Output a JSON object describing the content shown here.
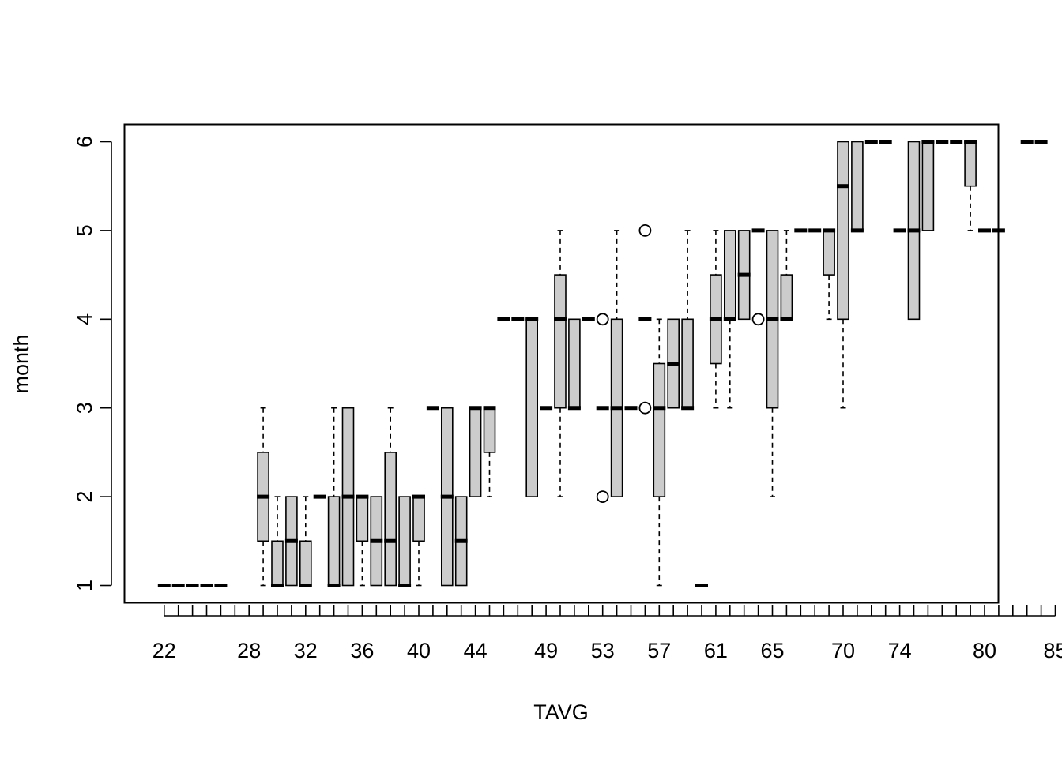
{
  "chart_data": {
    "type": "boxplot",
    "title": "",
    "xlabel": "TAVG",
    "ylabel": "month",
    "ylim": [
      0.9,
      6.2
    ],
    "y_ticks": [
      1,
      2,
      3,
      4,
      5,
      6
    ],
    "grid": false,
    "legend": "none",
    "box_fill": "#cccccc",
    "line_color": "#000000",
    "categories": [
      "22",
      "23",
      "24",
      "25",
      "26",
      "27",
      "28",
      "29",
      "30",
      "31",
      "32",
      "33",
      "34",
      "35",
      "36",
      "37",
      "38",
      "39",
      "40",
      "41",
      "42",
      "43",
      "44",
      "45",
      "46",
      "47",
      "48",
      "49",
      "50",
      "51",
      "52",
      "53",
      "54",
      "55",
      "56",
      "57",
      "58",
      "59",
      "60",
      "61",
      "62",
      "63",
      "64",
      "65",
      "66",
      "67",
      "68",
      "69",
      "70",
      "71",
      "72",
      "73",
      "74",
      "75",
      "76",
      "77",
      "78",
      "79",
      "80",
      "81",
      "82",
      "83",
      "84",
      "85"
    ],
    "labeled_categories": [
      "22",
      "28",
      "32",
      "36",
      "40",
      "44",
      "49",
      "53",
      "57",
      "61",
      "65",
      "70",
      "74",
      "80",
      "85"
    ],
    "boxes": [
      {
        "x": "22",
        "min": 1,
        "q1": 1,
        "median": 1,
        "q3": 1,
        "max": 1
      },
      {
        "x": "23",
        "min": 1,
        "q1": 1,
        "median": 1,
        "q3": 1,
        "max": 1
      },
      {
        "x": "24",
        "min": 1,
        "q1": 1,
        "median": 1,
        "q3": 1,
        "max": 1
      },
      {
        "x": "25",
        "min": 1,
        "q1": 1,
        "median": 1,
        "q3": 1,
        "max": 1
      },
      {
        "x": "26",
        "min": 1,
        "q1": 1,
        "median": 1,
        "q3": 1,
        "max": 1
      },
      {
        "x": "29",
        "min": 1,
        "q1": 1.5,
        "median": 2,
        "q3": 2.5,
        "max": 3
      },
      {
        "x": "30",
        "min": 1,
        "q1": 1,
        "median": 1,
        "q3": 1.5,
        "max": 2
      },
      {
        "x": "31",
        "min": 1,
        "q1": 1,
        "median": 1.5,
        "q3": 2,
        "max": 2
      },
      {
        "x": "32",
        "min": 1,
        "q1": 1,
        "median": 1,
        "q3": 1.5,
        "max": 2
      },
      {
        "x": "33",
        "min": 2,
        "q1": 2,
        "median": 2,
        "q3": 2,
        "max": 2
      },
      {
        "x": "34",
        "min": 1,
        "q1": 1,
        "median": 1,
        "q3": 2,
        "max": 3
      },
      {
        "x": "35",
        "min": 1,
        "q1": 1,
        "median": 2,
        "q3": 3,
        "max": 3
      },
      {
        "x": "36",
        "min": 1,
        "q1": 1.5,
        "median": 2,
        "q3": 2,
        "max": 2
      },
      {
        "x": "37",
        "min": 1,
        "q1": 1,
        "median": 1.5,
        "q3": 2,
        "max": 2
      },
      {
        "x": "38",
        "min": 1,
        "q1": 1,
        "median": 1.5,
        "q3": 2.5,
        "max": 3
      },
      {
        "x": "39",
        "min": 1,
        "q1": 1,
        "median": 1,
        "q3": 2,
        "max": 2
      },
      {
        "x": "40",
        "min": 1,
        "q1": 1.5,
        "median": 2,
        "q3": 2,
        "max": 2
      },
      {
        "x": "41",
        "min": 3,
        "q1": 3,
        "median": 3,
        "q3": 3,
        "max": 3
      },
      {
        "x": "42",
        "min": 1,
        "q1": 1,
        "median": 2,
        "q3": 3,
        "max": 3
      },
      {
        "x": "43",
        "min": 1,
        "q1": 1,
        "median": 1.5,
        "q3": 2,
        "max": 2
      },
      {
        "x": "44",
        "min": 2,
        "q1": 2,
        "median": 3,
        "q3": 3,
        "max": 3
      },
      {
        "x": "45",
        "min": 2,
        "q1": 2.5,
        "median": 3,
        "q3": 3,
        "max": 3
      },
      {
        "x": "46",
        "min": 4,
        "q1": 4,
        "median": 4,
        "q3": 4,
        "max": 4
      },
      {
        "x": "47",
        "min": 4,
        "q1": 4,
        "median": 4,
        "q3": 4,
        "max": 4
      },
      {
        "x": "48",
        "min": 2,
        "q1": 2,
        "median": 4,
        "q3": 4,
        "max": 4
      },
      {
        "x": "49",
        "min": 3,
        "q1": 3,
        "median": 3,
        "q3": 3,
        "max": 3
      },
      {
        "x": "50",
        "min": 2,
        "q1": 3,
        "median": 4,
        "q3": 4.5,
        "max": 5
      },
      {
        "x": "51",
        "min": 3,
        "q1": 3,
        "median": 3,
        "q3": 4,
        "max": 4
      },
      {
        "x": "52",
        "min": 4,
        "q1": 4,
        "median": 4,
        "q3": 4,
        "max": 4
      },
      {
        "x": "53",
        "min": 3,
        "q1": 3,
        "median": 3,
        "q3": 3,
        "max": 3,
        "outliers": [
          2,
          4
        ]
      },
      {
        "x": "54",
        "min": 2,
        "q1": 2,
        "median": 3,
        "q3": 4,
        "max": 5
      },
      {
        "x": "55",
        "min": 3,
        "q1": 3,
        "median": 3,
        "q3": 3,
        "max": 3
      },
      {
        "x": "56",
        "min": 4,
        "q1": 4,
        "median": 4,
        "q3": 4,
        "max": 4,
        "outliers": [
          3,
          5
        ]
      },
      {
        "x": "57",
        "min": 1,
        "q1": 2,
        "median": 3,
        "q3": 3.5,
        "max": 4
      },
      {
        "x": "58",
        "min": 3,
        "q1": 3,
        "median": 3.5,
        "q3": 4,
        "max": 4
      },
      {
        "x": "59",
        "min": 3,
        "q1": 3,
        "median": 3,
        "q3": 4,
        "max": 5
      },
      {
        "x": "60",
        "min": 1,
        "q1": 1,
        "median": 1,
        "q3": 1,
        "max": 1
      },
      {
        "x": "61",
        "min": 3,
        "q1": 3.5,
        "median": 4,
        "q3": 4.5,
        "max": 5
      },
      {
        "x": "62",
        "min": 3,
        "q1": 4,
        "median": 4,
        "q3": 5,
        "max": 5
      },
      {
        "x": "63",
        "min": 4,
        "q1": 4,
        "median": 4.5,
        "q3": 5,
        "max": 5
      },
      {
        "x": "64",
        "min": 5,
        "q1": 5,
        "median": 5,
        "q3": 5,
        "max": 5,
        "outliers": [
          4
        ]
      },
      {
        "x": "65",
        "min": 2,
        "q1": 3,
        "median": 4,
        "q3": 5,
        "max": 5
      },
      {
        "x": "66",
        "min": 4,
        "q1": 4,
        "median": 4,
        "q3": 4.5,
        "max": 5
      },
      {
        "x": "67",
        "min": 5,
        "q1": 5,
        "median": 5,
        "q3": 5,
        "max": 5
      },
      {
        "x": "68",
        "min": 5,
        "q1": 5,
        "median": 5,
        "q3": 5,
        "max": 5
      },
      {
        "x": "69",
        "min": 4,
        "q1": 4.5,
        "median": 5,
        "q3": 5,
        "max": 5
      },
      {
        "x": "70",
        "min": 3,
        "q1": 4,
        "median": 5.5,
        "q3": 6,
        "max": 6
      },
      {
        "x": "71",
        "min": 5,
        "q1": 5,
        "median": 5,
        "q3": 6,
        "max": 6
      },
      {
        "x": "72",
        "min": 6,
        "q1": 6,
        "median": 6,
        "q3": 6,
        "max": 6
      },
      {
        "x": "73",
        "min": 6,
        "q1": 6,
        "median": 6,
        "q3": 6,
        "max": 6
      },
      {
        "x": "74",
        "min": 5,
        "q1": 5,
        "median": 5,
        "q3": 5,
        "max": 5
      },
      {
        "x": "75",
        "min": 4,
        "q1": 4,
        "median": 5,
        "q3": 6,
        "max": 6
      },
      {
        "x": "76",
        "min": 5,
        "q1": 5,
        "median": 6,
        "q3": 6,
        "max": 6
      },
      {
        "x": "77",
        "min": 6,
        "q1": 6,
        "median": 6,
        "q3": 6,
        "max": 6
      },
      {
        "x": "78",
        "min": 6,
        "q1": 6,
        "median": 6,
        "q3": 6,
        "max": 6
      },
      {
        "x": "79",
        "min": 5,
        "q1": 5.5,
        "median": 6,
        "q3": 6,
        "max": 6
      },
      {
        "x": "80",
        "min": 5,
        "q1": 5,
        "median": 5,
        "q3": 5,
        "max": 5
      },
      {
        "x": "81",
        "min": 5,
        "q1": 5,
        "median": 5,
        "q3": 5,
        "max": 5
      },
      {
        "x": "83",
        "min": 6,
        "q1": 6,
        "median": 6,
        "q3": 6,
        "max": 6
      },
      {
        "x": "84",
        "min": 6,
        "q1": 6,
        "median": 6,
        "q3": 6,
        "max": 6
      }
    ]
  }
}
